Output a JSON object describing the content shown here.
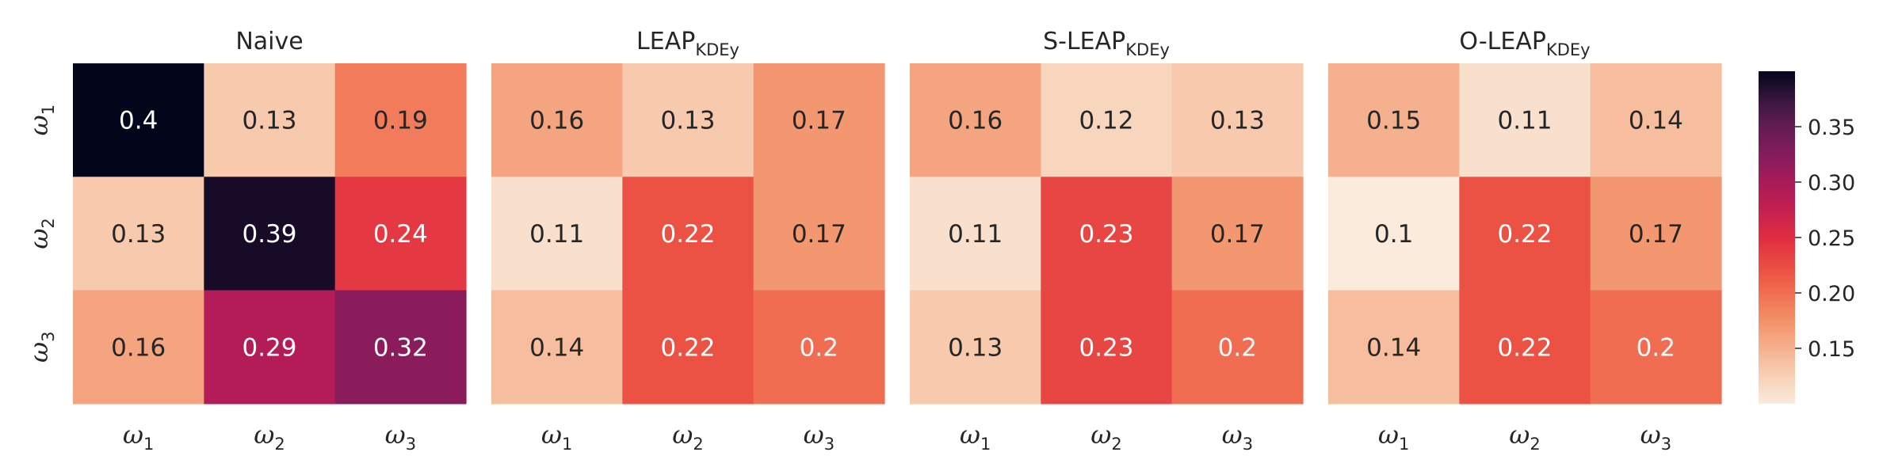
{
  "chart_data": {
    "type": "heatmap",
    "row_labels": [
      {
        "base": "ω",
        "sub": "1"
      },
      {
        "base": "ω",
        "sub": "2"
      },
      {
        "base": "ω",
        "sub": "3"
      }
    ],
    "col_labels": [
      {
        "base": "ω",
        "sub": "1"
      },
      {
        "base": "ω",
        "sub": "2"
      },
      {
        "base": "ω",
        "sub": "3"
      }
    ],
    "panels": [
      {
        "title": "Naive",
        "title_sub": "",
        "values": [
          [
            0.4,
            0.13,
            0.19
          ],
          [
            0.13,
            0.39,
            0.24
          ],
          [
            0.16,
            0.29,
            0.32
          ]
        ]
      },
      {
        "title": "LEAP",
        "title_sub": "KDEy",
        "values": [
          [
            0.16,
            0.13,
            0.17
          ],
          [
            0.11,
            0.22,
            0.17
          ],
          [
            0.14,
            0.22,
            0.2
          ]
        ]
      },
      {
        "title": "S-LEAP",
        "title_sub": "KDEy",
        "values": [
          [
            0.16,
            0.12,
            0.13
          ],
          [
            0.11,
            0.23,
            0.17
          ],
          [
            0.13,
            0.23,
            0.2
          ]
        ]
      },
      {
        "title": "O-LEAP",
        "title_sub": "KDEy",
        "values": [
          [
            0.15,
            0.11,
            0.14
          ],
          [
            0.1,
            0.22,
            0.17
          ],
          [
            0.14,
            0.22,
            0.2
          ]
        ]
      }
    ],
    "colorbar": {
      "range": [
        0.1,
        0.4
      ],
      "ticks": [
        0.15,
        0.2,
        0.25,
        0.3,
        0.35
      ],
      "tick_labels": [
        "0.15",
        "0.20",
        "0.25",
        "0.30",
        "0.35"
      ],
      "colormap": "rocket_r"
    },
    "grid": false
  }
}
